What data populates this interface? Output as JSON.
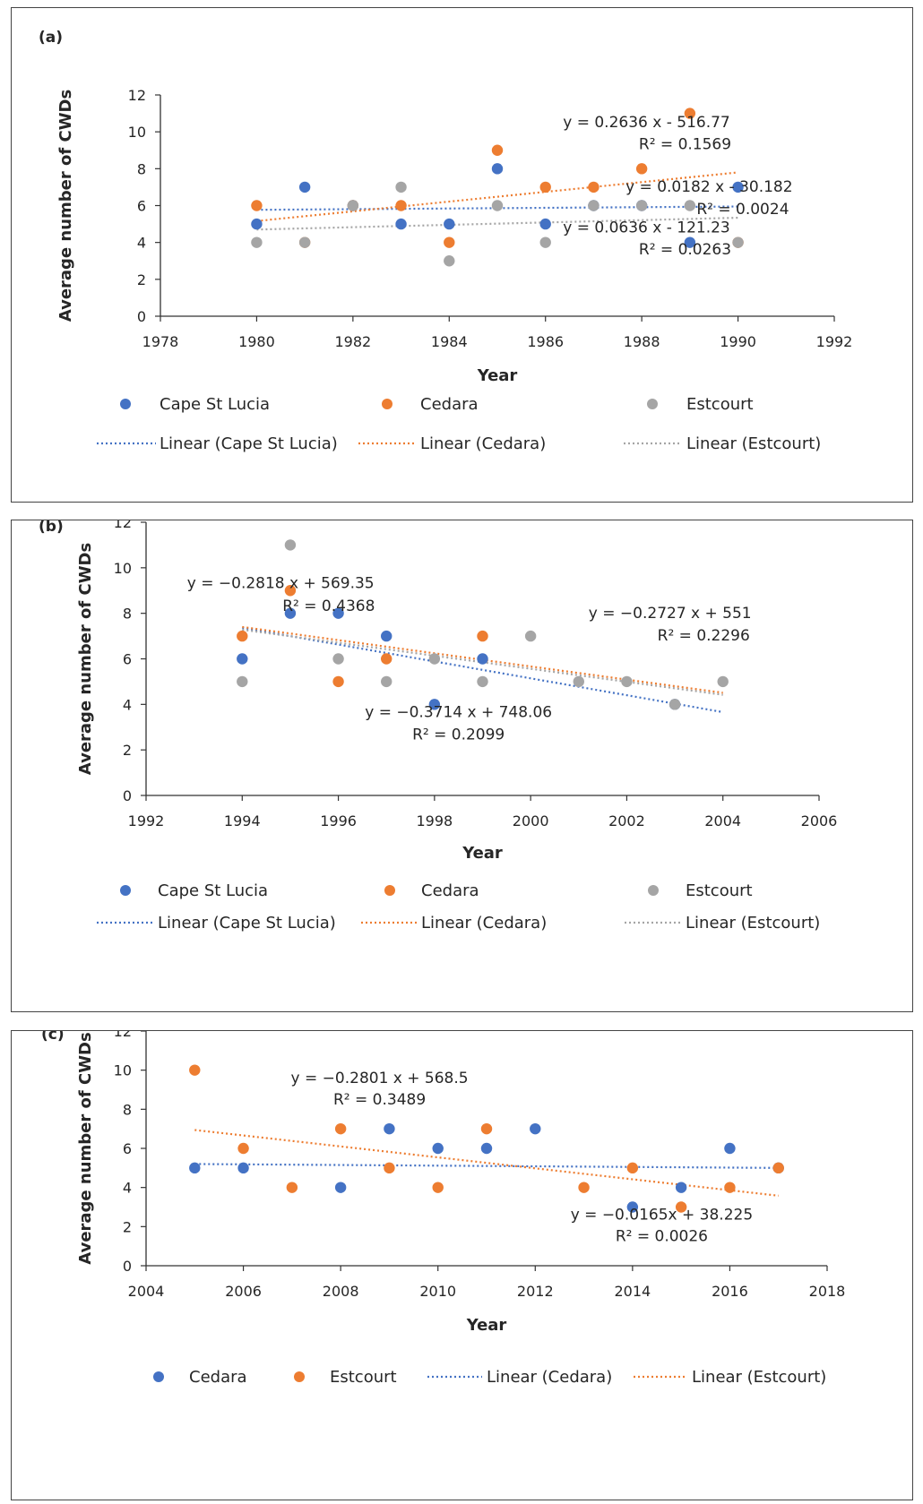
{
  "chart_data": [
    {
      "panel_label": "(a)",
      "type": "scatter",
      "xlabel": "Year",
      "ylabel": "Average number of CWDs",
      "xlim": [
        1978,
        1992
      ],
      "ylim": [
        0,
        12
      ],
      "xticks": [
        1978,
        1980,
        1982,
        1984,
        1986,
        1988,
        1990,
        1992
      ],
      "yticks": [
        0,
        2,
        4,
        6,
        8,
        10,
        12
      ],
      "legend_layout": "grid-2x3",
      "series": [
        {
          "name": "Cape St Lucia",
          "color": "#4472C4",
          "x": [
            1980,
            1981,
            1982,
            1983,
            1984,
            1985,
            1986,
            1987,
            1988,
            1989,
            1990
          ],
          "y": [
            5,
            7,
            6,
            5,
            5,
            8,
            5,
            6,
            6,
            4,
            7
          ],
          "trend": {
            "name": "Linear (Cape St Lucia)",
            "x": [
              1980,
              1990
            ],
            "y": [
              5.77,
              5.95
            ]
          }
        },
        {
          "name": "Cedara",
          "color": "#ED7D31",
          "x": [
            1980,
            1981,
            1982,
            1983,
            1984,
            1985,
            1986,
            1987,
            1988,
            1989,
            1990
          ],
          "y": [
            6,
            4,
            6,
            6,
            4,
            9,
            7,
            7,
            8,
            11,
            4
          ],
          "trend": {
            "name": "Linear (Cedara)",
            "x": [
              1980,
              1990
            ],
            "y": [
              5.16,
              7.8
            ]
          }
        },
        {
          "name": "Estcourt",
          "color": "#A5A5A5",
          "x": [
            1980,
            1981,
            1982,
            1983,
            1984,
            1985,
            1986,
            1987,
            1988,
            1989,
            1990
          ],
          "y": [
            4,
            4,
            6,
            7,
            3,
            6,
            4,
            6,
            6,
            6,
            4
          ],
          "trend": {
            "name": "Linear (Estcourt)",
            "x": [
              1980,
              1990
            ],
            "y": [
              4.7,
              5.34
            ]
          }
        }
      ],
      "annotations": [
        {
          "text": "y = 0.2636 x - 516.77",
          "x": 1988.1,
          "y": 10.25
        },
        {
          "text": "R² = 0.1569",
          "x": 1988.9,
          "y": 9.05
        },
        {
          "text": "y = 0.0182 x - 30.182",
          "x": 1989.4,
          "y": 6.75
        },
        {
          "text": "R² = 0.0024",
          "x": 1990.1,
          "y": 5.55
        },
        {
          "text": "y = 0.0636 x - 121.23",
          "x": 1988.1,
          "y": 4.55
        },
        {
          "text": "R² = 0.0263",
          "x": 1988.9,
          "y": 3.35
        }
      ]
    },
    {
      "panel_label": "(b)",
      "type": "scatter",
      "xlabel": "Year",
      "ylabel": "Average number of CWDs",
      "xlim": [
        1992,
        2006
      ],
      "ylim": [
        0,
        12
      ],
      "xticks": [
        1992,
        1994,
        1996,
        1998,
        2000,
        2002,
        2004,
        2006
      ],
      "yticks": [
        0,
        2,
        4,
        6,
        8,
        10,
        12
      ],
      "legend_layout": "grid-2x3",
      "series": [
        {
          "name": "Cape St Lucia",
          "color": "#4472C4",
          "x": [
            1994,
            1995,
            1996,
            1997,
            1998,
            1999,
            2003
          ],
          "y": [
            6,
            8,
            8,
            7,
            4,
            6,
            4
          ],
          "trend": {
            "name": "Linear (Cape St Lucia)",
            "x": [
              1994,
              2004
            ],
            "y": [
              7.37,
              3.66
            ]
          }
        },
        {
          "name": "Cedara",
          "color": "#ED7D31",
          "x": [
            1994,
            1995,
            1996,
            1997,
            1999
          ],
          "y": [
            7,
            9,
            5,
            6,
            7
          ],
          "trend": {
            "name": "Linear (Cedara)",
            "x": [
              1994,
              2004
            ],
            "y": [
              7.4,
              4.51
            ]
          }
        },
        {
          "name": "Estcourt",
          "color": "#A5A5A5",
          "x": [
            1994,
            1995,
            1996,
            1997,
            1998,
            1999,
            2000,
            2001,
            2002,
            2003,
            2004
          ],
          "y": [
            5,
            11,
            6,
            5,
            6,
            5,
            7,
            5,
            5,
            4,
            5
          ],
          "trend": {
            "name": "Linear (Estcourt)",
            "x": [
              1994,
              2004
            ],
            "y": [
              7.28,
              4.42
            ]
          }
        }
      ],
      "annotations": [
        {
          "text": "y = −0.2818 x + 569.35",
          "x": 1994.8,
          "y": 9.1
        },
        {
          "text": "R² = 0.4368",
          "x": 1995.8,
          "y": 8.1
        },
        {
          "text": "y = −0.2727 x + 551",
          "x": 2002.9,
          "y": 7.8
        },
        {
          "text": "R² = 0.2296",
          "x": 2003.6,
          "y": 6.8
        },
        {
          "text": "y = −0.3714 x + 748.06",
          "x": 1998.5,
          "y": 3.45
        },
        {
          "text": "R² = 0.2099",
          "x": 1998.5,
          "y": 2.45
        }
      ]
    },
    {
      "panel_label": "(c)",
      "type": "scatter",
      "xlabel": "Year",
      "ylabel": "Average number of CWDs",
      "xlim": [
        2004,
        2018
      ],
      "ylim": [
        0,
        12
      ],
      "xticks": [
        2004,
        2006,
        2008,
        2010,
        2012,
        2014,
        2016,
        2018
      ],
      "yticks": [
        0,
        2,
        4,
        6,
        8,
        10,
        12
      ],
      "legend_layout": "single-row",
      "series": [
        {
          "name": "Cedara",
          "color": "#4472C4",
          "x": [
            2005,
            2006,
            2008,
            2009,
            2010,
            2011,
            2012,
            2014,
            2015,
            2016,
            2017
          ],
          "y": [
            5,
            5,
            4,
            7,
            6,
            6,
            7,
            3,
            4,
            6,
            5
          ],
          "trend": {
            "name": "Linear (Cedara)",
            "x": [
              2005,
              2017
            ],
            "y": [
              5.2,
              5.0
            ]
          }
        },
        {
          "name": "Estcourt",
          "color": "#ED7D31",
          "x": [
            2005,
            2006,
            2007,
            2008,
            2009,
            2010,
            2011,
            2013,
            2014,
            2015,
            2016,
            2017
          ],
          "y": [
            10,
            6,
            4,
            7,
            5,
            4,
            7,
            4,
            5,
            3,
            4,
            5
          ],
          "trend": {
            "name": "Linear (Estcourt)",
            "x": [
              2005,
              2017
            ],
            "y": [
              6.94,
              3.58
            ]
          }
        }
      ],
      "annotations": [
        {
          "text": "y = −0.2801 x + 568.5",
          "x": 2008.8,
          "y": 9.35
        },
        {
          "text": "R² = 0.3489",
          "x": 2008.8,
          "y": 8.25
        },
        {
          "text": "y = −0.0165x + 38.225",
          "x": 2014.6,
          "y": 2.35
        },
        {
          "text": "R² = 0.0026",
          "x": 2014.6,
          "y": 1.25
        }
      ]
    }
  ]
}
